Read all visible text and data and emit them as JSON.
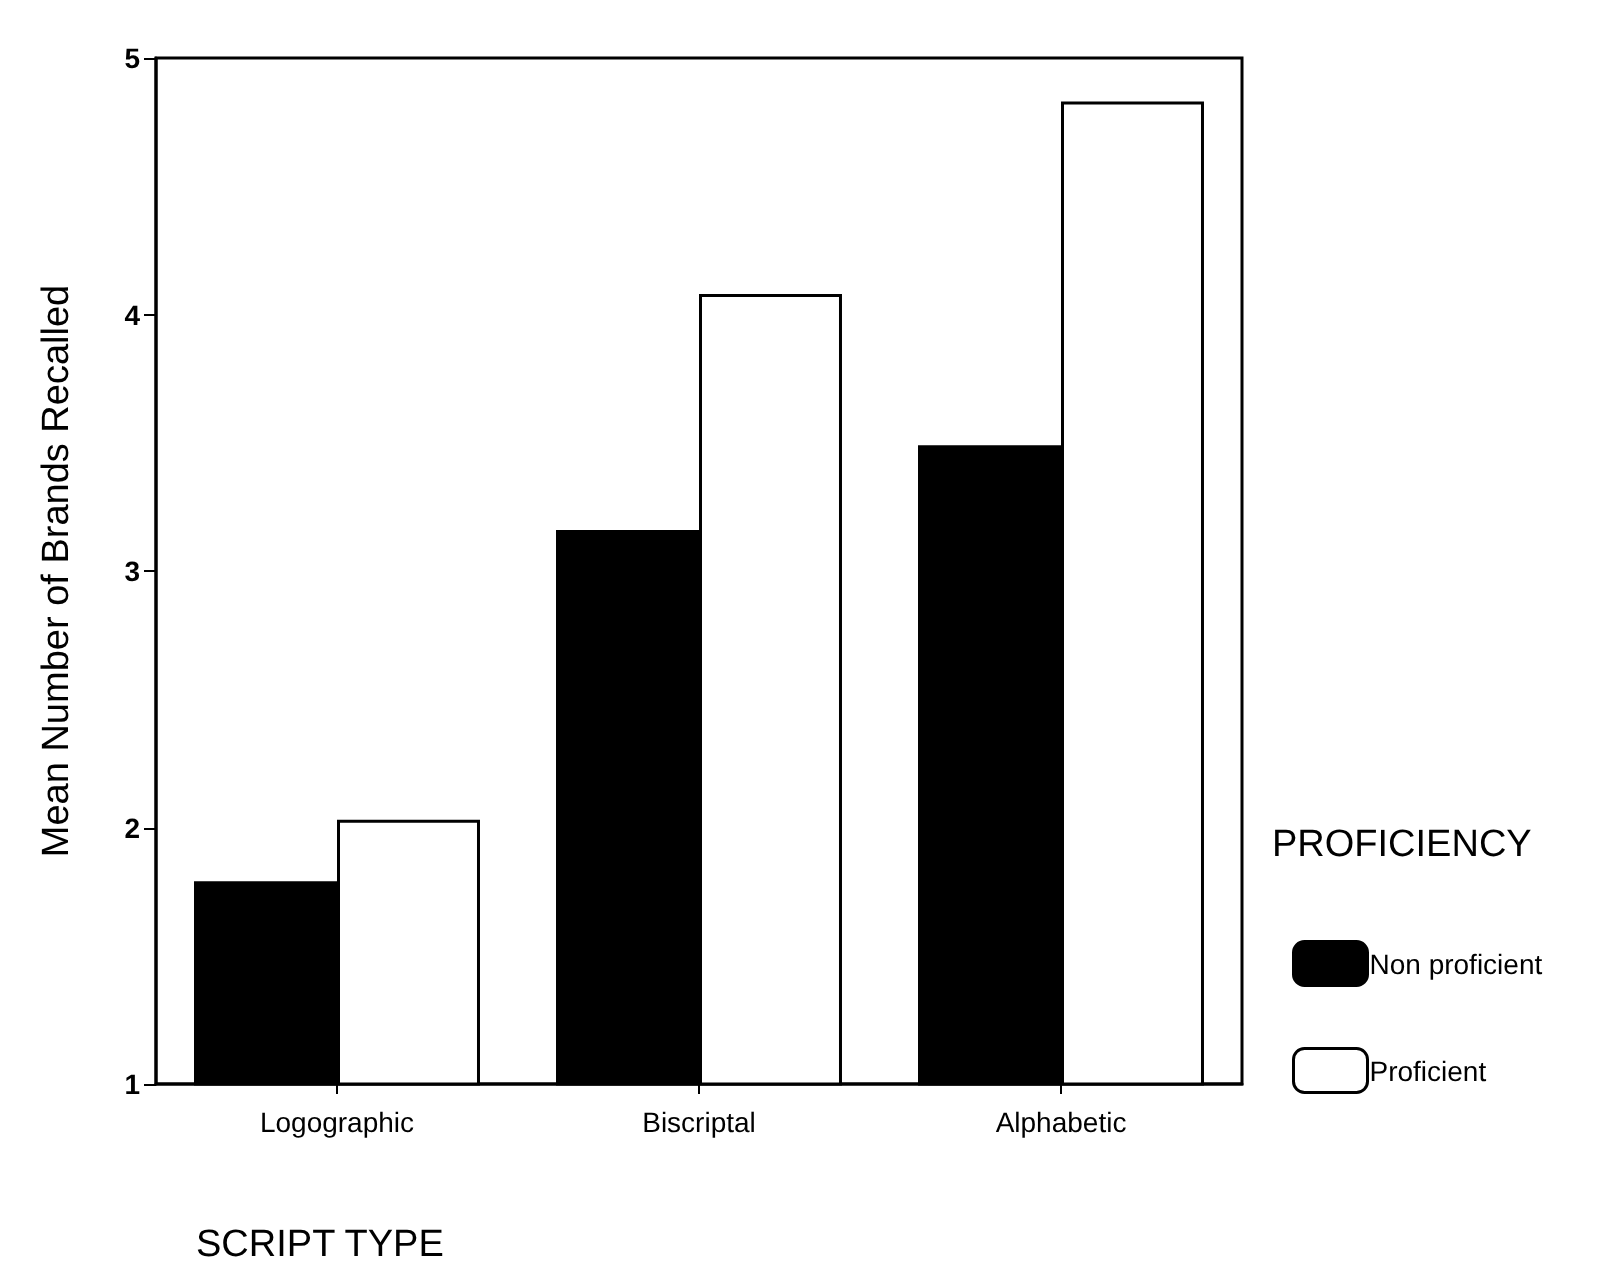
{
  "chart_data": {
    "type": "bar",
    "categories": [
      "Logographic",
      "Biscriptal",
      "Alphabetic"
    ],
    "series": [
      {
        "name": "Non proficient",
        "color": "#000000",
        "values": [
          1.79,
          3.16,
          3.49
        ]
      },
      {
        "name": "Proficient",
        "color": "#ffffff",
        "values": [
          2.03,
          4.08,
          4.83
        ]
      }
    ],
    "ylabel": "Mean Number of Brands Recalled",
    "xlabel": "SCRIPT TYPE",
    "legend_title": "PROFICIENCY",
    "ylim": [
      1,
      5
    ],
    "yticks": [
      1,
      2,
      3,
      4,
      5
    ],
    "grid": false,
    "legend": "bottom right"
  }
}
